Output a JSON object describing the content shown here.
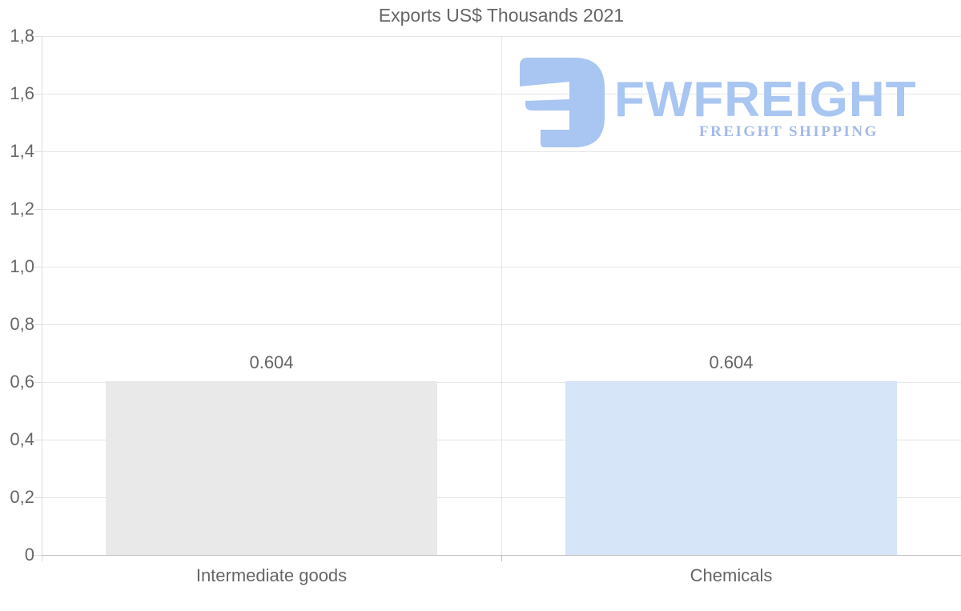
{
  "title": "Exports US$ Thousands 2021",
  "logo": {
    "name": "FWFREIGHT",
    "tagline": "FREIGHT SHIPPING",
    "mark_color": "#a9c5f1",
    "name_color": "#a9c6f2",
    "tagline_color": "#a3b9ea"
  },
  "chart_data": {
    "type": "bar",
    "title": "Exports US$ Thousands 2021",
    "categories": [
      "Intermediate goods",
      "Chemicals"
    ],
    "values": [
      0.604,
      0.604
    ],
    "value_labels": [
      "0.604",
      "0.604"
    ],
    "bar_colors": [
      "#e9e9e9",
      "#d6e5f8"
    ],
    "xlabel": "",
    "ylabel": "",
    "ylim": [
      0,
      1.8
    ],
    "y_ticks": [
      1.8,
      1.6,
      1.4,
      1.2,
      1.0,
      0.8,
      0.6,
      0.4,
      0.2,
      0
    ],
    "y_tick_labels": [
      "1,8",
      "1,6",
      "1,4",
      "1,2",
      "1,0",
      "0,8",
      "0,6",
      "0,4",
      "0,2",
      "0"
    ],
    "grid": "horizontal",
    "legend": "none"
  },
  "colors": {
    "background": "#ffffff",
    "text": "#666666",
    "gridline": "#e5e5e5",
    "axis_left": "#dcdcdc",
    "axis_bottom": "#c2c2c2"
  }
}
